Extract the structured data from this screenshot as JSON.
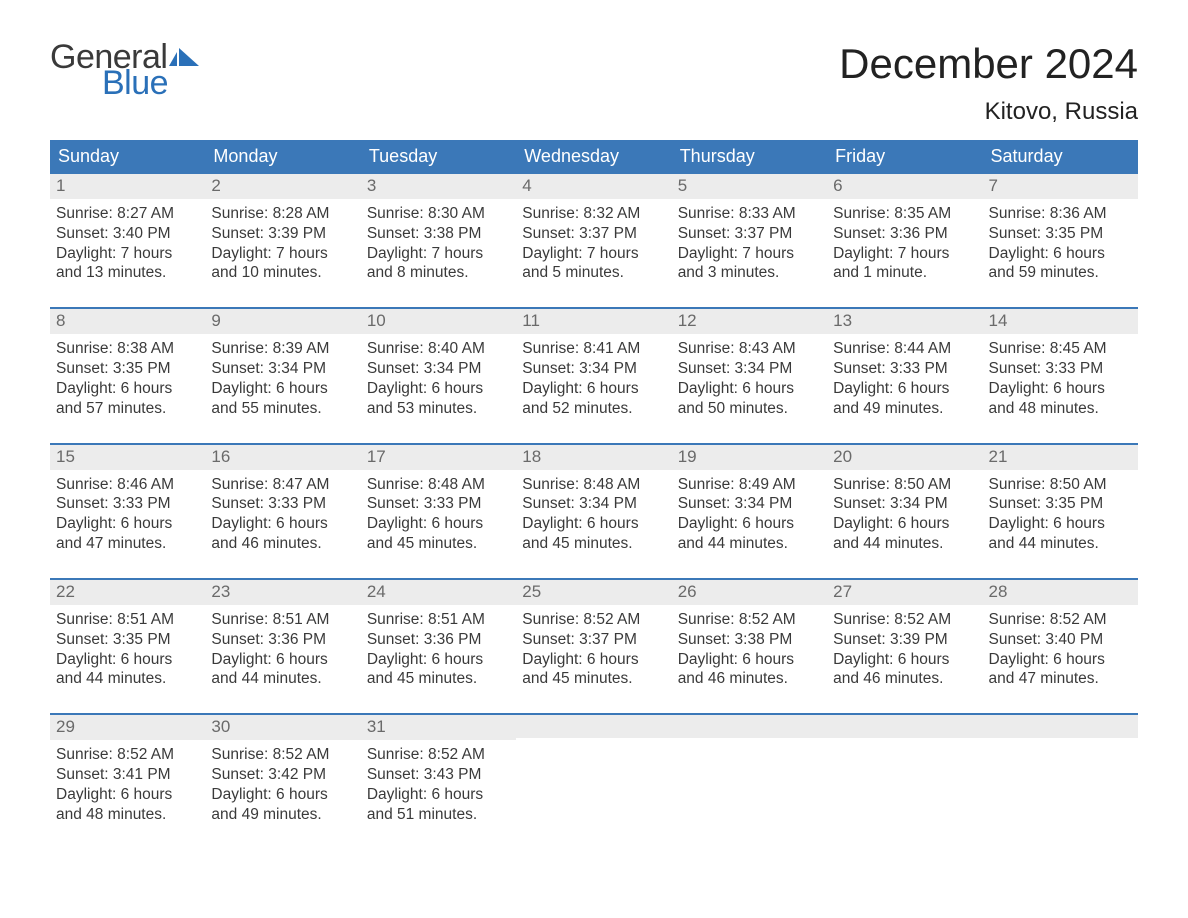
{
  "brand": {
    "word1": "General",
    "word2": "Blue",
    "flag_color": "#2a70b8"
  },
  "title": "December 2024",
  "location": "Kitovo, Russia",
  "colors": {
    "header_bg": "#3b78b8",
    "header_text": "#ffffff",
    "week_border": "#3b78b8",
    "daynum_bg": "#ececec",
    "daynum_text": "#6a6a6a",
    "body_text": "#3a3a3a",
    "page_bg": "#ffffff"
  },
  "fonts": {
    "title_fontsize": 42,
    "location_fontsize": 24,
    "weekday_fontsize": 18,
    "daynum_fontsize": 17,
    "body_fontsize": 15.5,
    "logo_fontsize": 34
  },
  "weekdays": [
    "Sunday",
    "Monday",
    "Tuesday",
    "Wednesday",
    "Thursday",
    "Friday",
    "Saturday"
  ],
  "weeks": [
    [
      {
        "n": "1",
        "sunrise": "Sunrise: 8:27 AM",
        "sunset": "Sunset: 3:40 PM",
        "d1": "Daylight: 7 hours",
        "d2": "and 13 minutes."
      },
      {
        "n": "2",
        "sunrise": "Sunrise: 8:28 AM",
        "sunset": "Sunset: 3:39 PM",
        "d1": "Daylight: 7 hours",
        "d2": "and 10 minutes."
      },
      {
        "n": "3",
        "sunrise": "Sunrise: 8:30 AM",
        "sunset": "Sunset: 3:38 PM",
        "d1": "Daylight: 7 hours",
        "d2": "and 8 minutes."
      },
      {
        "n": "4",
        "sunrise": "Sunrise: 8:32 AM",
        "sunset": "Sunset: 3:37 PM",
        "d1": "Daylight: 7 hours",
        "d2": "and 5 minutes."
      },
      {
        "n": "5",
        "sunrise": "Sunrise: 8:33 AM",
        "sunset": "Sunset: 3:37 PM",
        "d1": "Daylight: 7 hours",
        "d2": "and 3 minutes."
      },
      {
        "n": "6",
        "sunrise": "Sunrise: 8:35 AM",
        "sunset": "Sunset: 3:36 PM",
        "d1": "Daylight: 7 hours",
        "d2": "and 1 minute."
      },
      {
        "n": "7",
        "sunrise": "Sunrise: 8:36 AM",
        "sunset": "Sunset: 3:35 PM",
        "d1": "Daylight: 6 hours",
        "d2": "and 59 minutes."
      }
    ],
    [
      {
        "n": "8",
        "sunrise": "Sunrise: 8:38 AM",
        "sunset": "Sunset: 3:35 PM",
        "d1": "Daylight: 6 hours",
        "d2": "and 57 minutes."
      },
      {
        "n": "9",
        "sunrise": "Sunrise: 8:39 AM",
        "sunset": "Sunset: 3:34 PM",
        "d1": "Daylight: 6 hours",
        "d2": "and 55 minutes."
      },
      {
        "n": "10",
        "sunrise": "Sunrise: 8:40 AM",
        "sunset": "Sunset: 3:34 PM",
        "d1": "Daylight: 6 hours",
        "d2": "and 53 minutes."
      },
      {
        "n": "11",
        "sunrise": "Sunrise: 8:41 AM",
        "sunset": "Sunset: 3:34 PM",
        "d1": "Daylight: 6 hours",
        "d2": "and 52 minutes."
      },
      {
        "n": "12",
        "sunrise": "Sunrise: 8:43 AM",
        "sunset": "Sunset: 3:34 PM",
        "d1": "Daylight: 6 hours",
        "d2": "and 50 minutes."
      },
      {
        "n": "13",
        "sunrise": "Sunrise: 8:44 AM",
        "sunset": "Sunset: 3:33 PM",
        "d1": "Daylight: 6 hours",
        "d2": "and 49 minutes."
      },
      {
        "n": "14",
        "sunrise": "Sunrise: 8:45 AM",
        "sunset": "Sunset: 3:33 PM",
        "d1": "Daylight: 6 hours",
        "d2": "and 48 minutes."
      }
    ],
    [
      {
        "n": "15",
        "sunrise": "Sunrise: 8:46 AM",
        "sunset": "Sunset: 3:33 PM",
        "d1": "Daylight: 6 hours",
        "d2": "and 47 minutes."
      },
      {
        "n": "16",
        "sunrise": "Sunrise: 8:47 AM",
        "sunset": "Sunset: 3:33 PM",
        "d1": "Daylight: 6 hours",
        "d2": "and 46 minutes."
      },
      {
        "n": "17",
        "sunrise": "Sunrise: 8:48 AM",
        "sunset": "Sunset: 3:33 PM",
        "d1": "Daylight: 6 hours",
        "d2": "and 45 minutes."
      },
      {
        "n": "18",
        "sunrise": "Sunrise: 8:48 AM",
        "sunset": "Sunset: 3:34 PM",
        "d1": "Daylight: 6 hours",
        "d2": "and 45 minutes."
      },
      {
        "n": "19",
        "sunrise": "Sunrise: 8:49 AM",
        "sunset": "Sunset: 3:34 PM",
        "d1": "Daylight: 6 hours",
        "d2": "and 44 minutes."
      },
      {
        "n": "20",
        "sunrise": "Sunrise: 8:50 AM",
        "sunset": "Sunset: 3:34 PM",
        "d1": "Daylight: 6 hours",
        "d2": "and 44 minutes."
      },
      {
        "n": "21",
        "sunrise": "Sunrise: 8:50 AM",
        "sunset": "Sunset: 3:35 PM",
        "d1": "Daylight: 6 hours",
        "d2": "and 44 minutes."
      }
    ],
    [
      {
        "n": "22",
        "sunrise": "Sunrise: 8:51 AM",
        "sunset": "Sunset: 3:35 PM",
        "d1": "Daylight: 6 hours",
        "d2": "and 44 minutes."
      },
      {
        "n": "23",
        "sunrise": "Sunrise: 8:51 AM",
        "sunset": "Sunset: 3:36 PM",
        "d1": "Daylight: 6 hours",
        "d2": "and 44 minutes."
      },
      {
        "n": "24",
        "sunrise": "Sunrise: 8:51 AM",
        "sunset": "Sunset: 3:36 PM",
        "d1": "Daylight: 6 hours",
        "d2": "and 45 minutes."
      },
      {
        "n": "25",
        "sunrise": "Sunrise: 8:52 AM",
        "sunset": "Sunset: 3:37 PM",
        "d1": "Daylight: 6 hours",
        "d2": "and 45 minutes."
      },
      {
        "n": "26",
        "sunrise": "Sunrise: 8:52 AM",
        "sunset": "Sunset: 3:38 PM",
        "d1": "Daylight: 6 hours",
        "d2": "and 46 minutes."
      },
      {
        "n": "27",
        "sunrise": "Sunrise: 8:52 AM",
        "sunset": "Sunset: 3:39 PM",
        "d1": "Daylight: 6 hours",
        "d2": "and 46 minutes."
      },
      {
        "n": "28",
        "sunrise": "Sunrise: 8:52 AM",
        "sunset": "Sunset: 3:40 PM",
        "d1": "Daylight: 6 hours",
        "d2": "and 47 minutes."
      }
    ],
    [
      {
        "n": "29",
        "sunrise": "Sunrise: 8:52 AM",
        "sunset": "Sunset: 3:41 PM",
        "d1": "Daylight: 6 hours",
        "d2": "and 48 minutes."
      },
      {
        "n": "30",
        "sunrise": "Sunrise: 8:52 AM",
        "sunset": "Sunset: 3:42 PM",
        "d1": "Daylight: 6 hours",
        "d2": "and 49 minutes."
      },
      {
        "n": "31",
        "sunrise": "Sunrise: 8:52 AM",
        "sunset": "Sunset: 3:43 PM",
        "d1": "Daylight: 6 hours",
        "d2": "and 51 minutes."
      },
      null,
      null,
      null,
      null
    ]
  ]
}
